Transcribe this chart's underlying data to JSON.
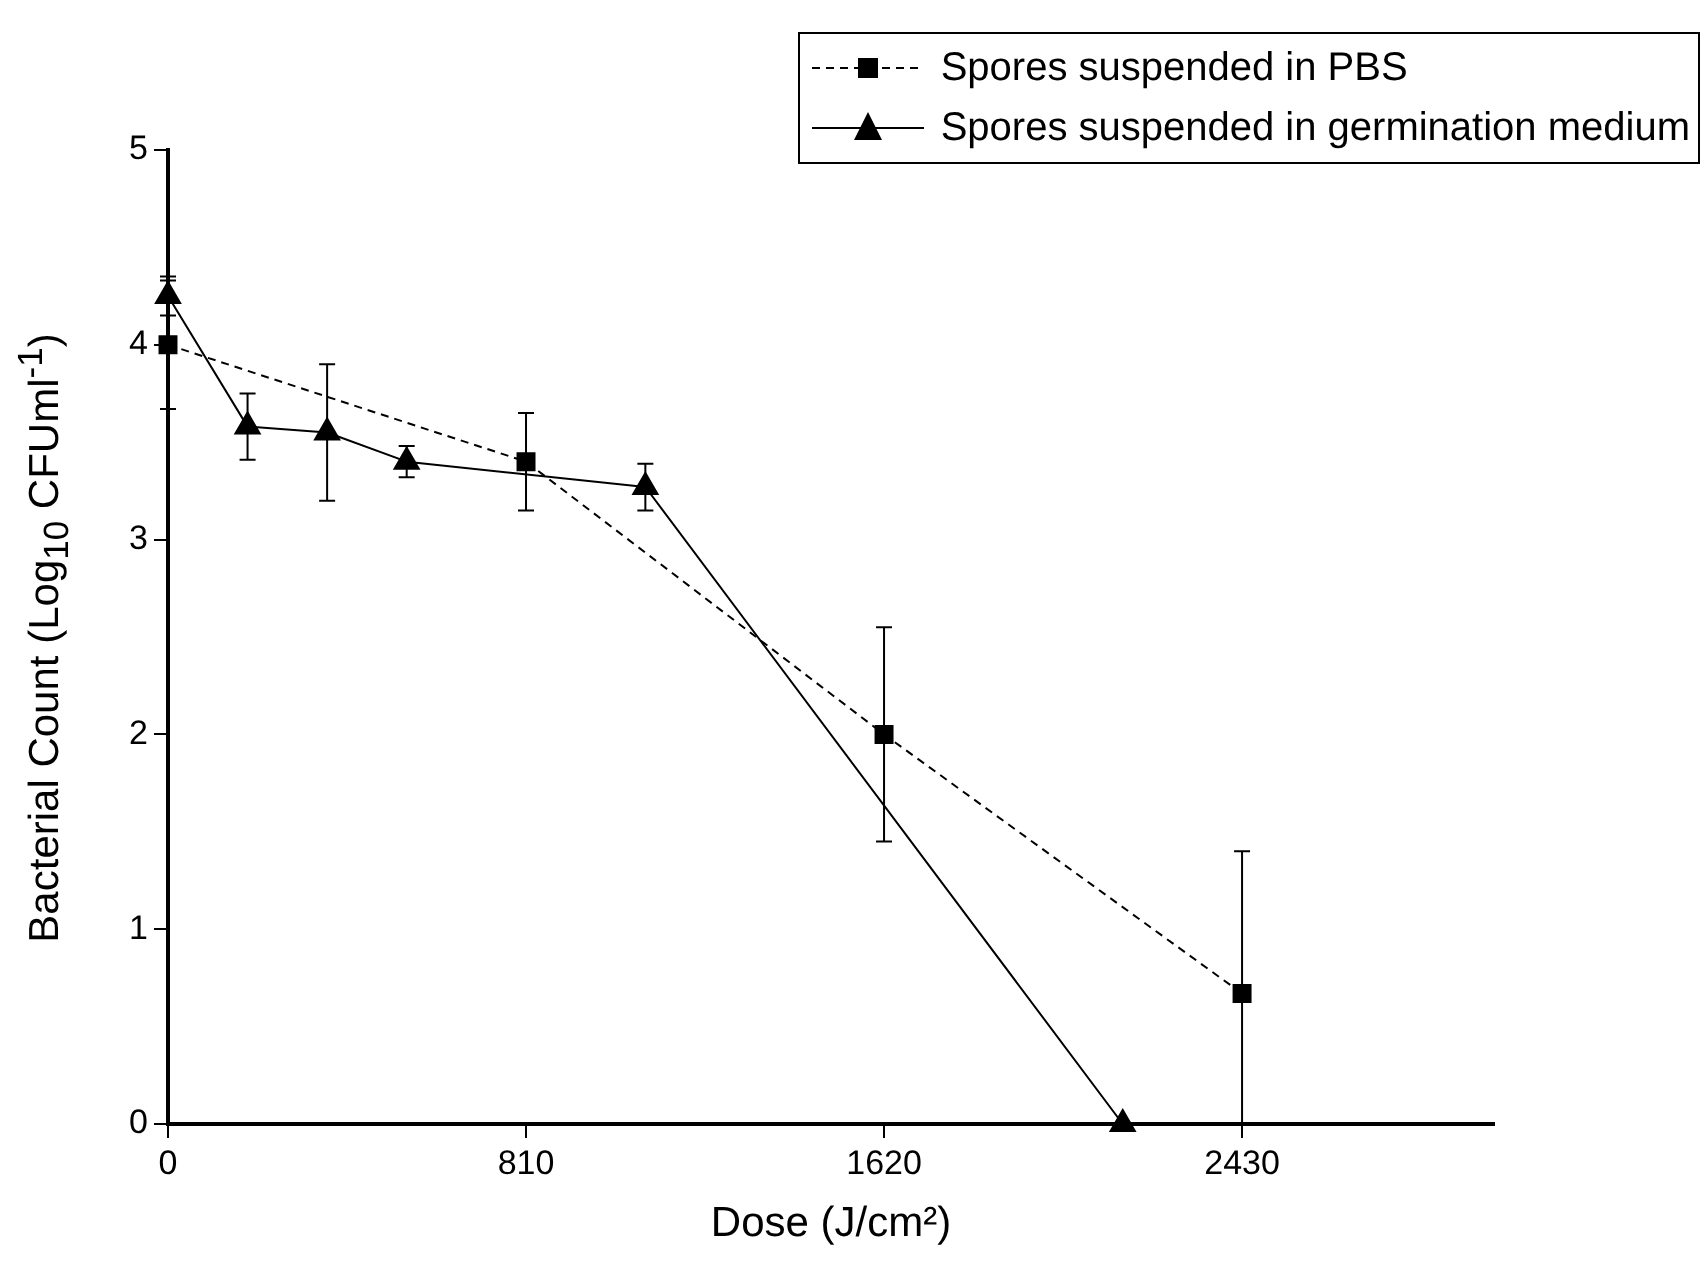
{
  "chart_data": {
    "type": "line",
    "xlabel": "Dose (J/cm²)",
    "ylabel": "Bacterial Count (Log$_{10}$ CFUml$^{-1}$)",
    "xlim": [
      0,
      3000
    ],
    "xticks": [
      0,
      810,
      1620,
      2430
    ],
    "ylim": [
      0,
      5
    ],
    "yticks": [
      0,
      1,
      2,
      3,
      4,
      5
    ],
    "grid": false,
    "legend": "top right",
    "series": [
      {
        "name": "Spores suspended in PBS",
        "color": "#000000",
        "marker": "square",
        "line_style": "dashed",
        "x": [
          0,
          810,
          1620,
          2430
        ],
        "values": [
          4.0,
          3.4,
          2.0,
          0.67
        ],
        "errors": [
          0.33,
          0.25,
          0.55,
          [
            0,
            1.4
          ]
        ]
      },
      {
        "name": "Spores suspended in germination medium",
        "color": "#000000",
        "marker": "triangle",
        "line_style": "solid",
        "x": [
          0,
          180,
          360,
          540,
          1080,
          2160
        ],
        "values": [
          4.25,
          3.58,
          3.55,
          3.4,
          3.27,
          0
        ],
        "errors": [
          0.1,
          0.17,
          0.35,
          0.08,
          0.12,
          null
        ]
      }
    ]
  }
}
